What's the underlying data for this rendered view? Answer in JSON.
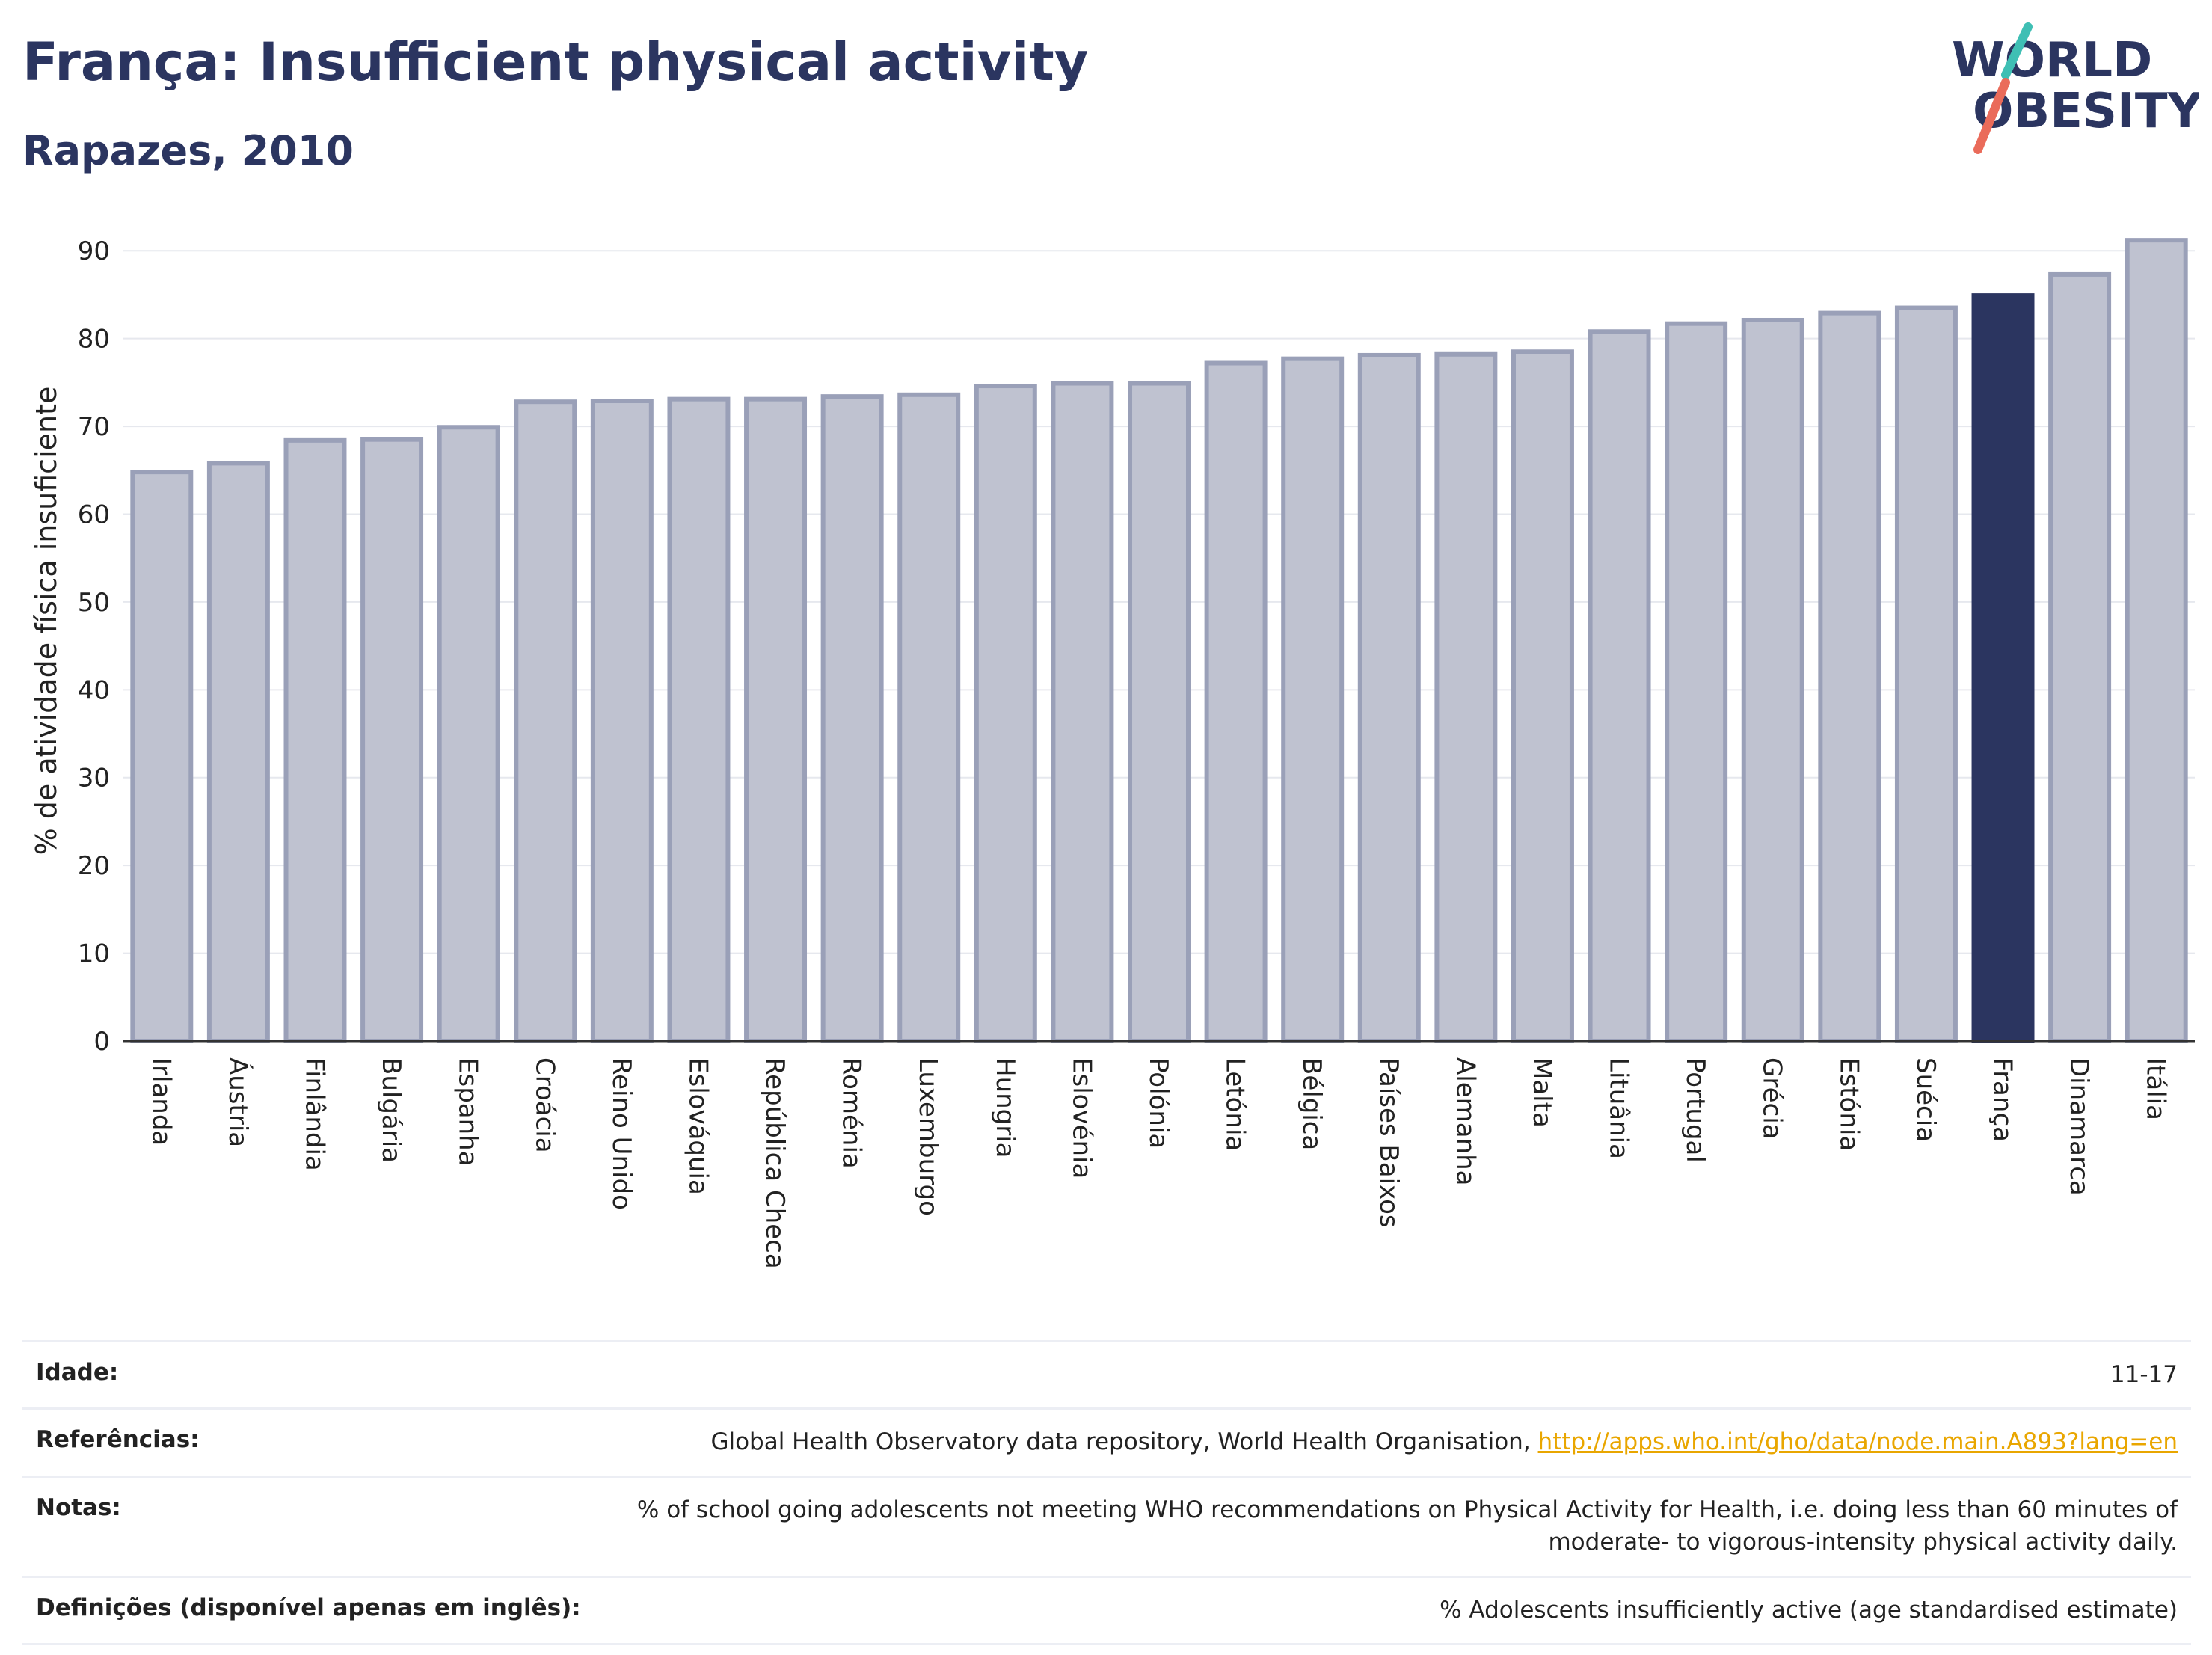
{
  "header": {
    "title": "França: Insufficient physical activity",
    "subtitle": "Rapazes, 2010"
  },
  "logo": {
    "line1": "WORLD",
    "line2": "OBESITY"
  },
  "colors": {
    "bar": "#bfc2d0",
    "bar_border": "#9aa0b8",
    "highlight": "#2b3560",
    "grid": "#e6e8ee"
  },
  "chart_data": {
    "type": "bar",
    "ylabel": "% de atividade física insuficiente",
    "ylim": [
      0,
      93
    ],
    "yticks": [
      0,
      10,
      20,
      30,
      40,
      50,
      60,
      70,
      80,
      90
    ],
    "highlight": "França",
    "categories": [
      "Irlanda",
      "Áustria",
      "Finlândia",
      "Bulgária",
      "Espanha",
      "Croácia",
      "Reino Unido",
      "Eslováquia",
      "República Checa",
      "Roménia",
      "Luxemburgo",
      "Hungria",
      "Eslovénia",
      "Polónia",
      "Letónia",
      "Bélgica",
      "Países Baixos",
      "Alemanha",
      "Malta",
      "Lituânia",
      "Portugal",
      "Grécia",
      "Estónia",
      "Suécia",
      "França",
      "Dinamarca",
      "Itália"
    ],
    "values": [
      64.8,
      65.8,
      68.4,
      68.5,
      69.9,
      72.8,
      72.9,
      73.1,
      73.1,
      73.4,
      73.6,
      74.6,
      74.9,
      74.9,
      77.2,
      77.7,
      78.1,
      78.2,
      78.5,
      80.8,
      81.7,
      82.1,
      82.9,
      83.5,
      84.9,
      87.3,
      91.2
    ]
  },
  "info": {
    "rows": [
      {
        "label": "Idade:",
        "value": "11-17"
      },
      {
        "label": "Referências:",
        "value": "Global Health Observatory data repository, World Health Organisation, ",
        "link": "http://apps.who.int/gho/data/node.main.A893?lang=en"
      },
      {
        "label": "Notas:",
        "value": "% of school going adolescents not meeting WHO recommendations on Physical Activity for Health, i.e. doing less than 60 minutes of moderate- to vigorous-intensity physical activity daily."
      },
      {
        "label": "Definições (disponível apenas em inglês):",
        "value": "% Adolescents insufficiently active (age standardised estimate)"
      }
    ]
  }
}
